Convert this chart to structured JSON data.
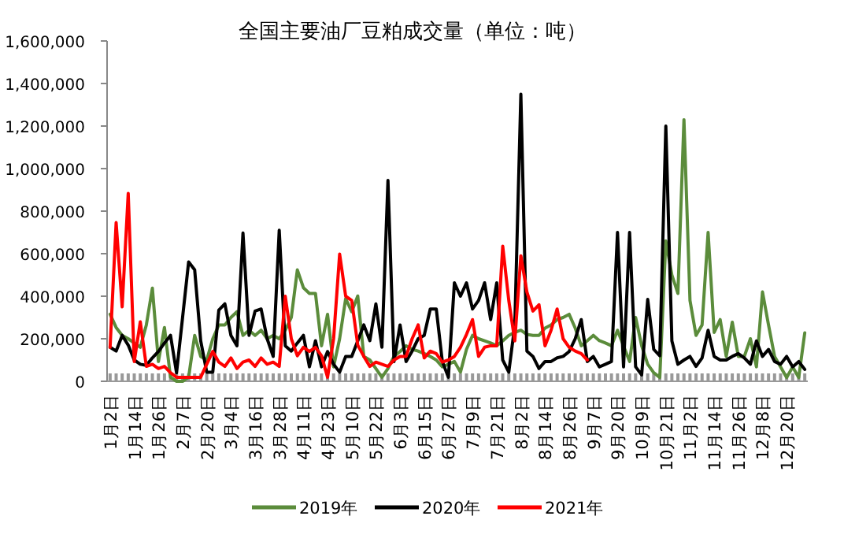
{
  "chart_data": {
    "type": "line",
    "title": "全国主要油厂豆粕成交量（单位：吨）",
    "categories": [
      "1月2日",
      null,
      null,
      null,
      "1月14日",
      null,
      null,
      null,
      "1月26日",
      null,
      null,
      null,
      "2月7日",
      null,
      null,
      null,
      "2月20日",
      null,
      null,
      null,
      "3月4日",
      null,
      null,
      null,
      "3月16日",
      null,
      null,
      null,
      "3月28日",
      null,
      null,
      null,
      "4月11日",
      null,
      null,
      null,
      "4月23日",
      null,
      null,
      null,
      "5月10日",
      null,
      null,
      null,
      "5月22日",
      null,
      null,
      null,
      "6月3日",
      null,
      null,
      null,
      "6月15日",
      null,
      null,
      null,
      "6月27日",
      null,
      null,
      null,
      "7月9日",
      null,
      null,
      null,
      "7月21日",
      null,
      null,
      null,
      "8月2日",
      null,
      null,
      null,
      "8月14日",
      null,
      null,
      null,
      "8月26日",
      null,
      null,
      null,
      "9月7日",
      null,
      null,
      null,
      "9月20日",
      null,
      null,
      null,
      "10月9日",
      null,
      null,
      null,
      "10月21日",
      null,
      null,
      null,
      "11月2日",
      null,
      null,
      null,
      "11月14日",
      null,
      null,
      null,
      "11月26日",
      null,
      null,
      null,
      "12月8日",
      null,
      null,
      null,
      "12月20日",
      null,
      null,
      null
    ],
    "series": [
      {
        "name": "2019年",
        "color": "#5b8c3b",
        "values": [
          315000,
          253000,
          216000,
          200000,
          180000,
          160000,
          265000,
          438000,
          93000,
          253000,
          19000,
          0,
          0,
          19000,
          216000,
          117000,
          100000,
          200000,
          265000,
          265000,
          300000,
          327000,
          216000,
          240000,
          216000,
          240000,
          200000,
          216000,
          200000,
          240000,
          300000,
          524000,
          440000,
          413000,
          413000,
          167000,
          315000,
          68000,
          200000,
          389000,
          327000,
          401000,
          117000,
          100000,
          60000,
          19000,
          60000,
          117000,
          140000,
          167000,
          150000,
          142000,
          130000,
          117000,
          100000,
          68000,
          80000,
          93000,
          43000,
          150000,
          216000,
          200000,
          190000,
          180000,
          167000,
          190000,
          216000,
          230000,
          240000,
          220000,
          216000,
          216000,
          250000,
          265000,
          290000,
          300000,
          315000,
          250000,
          167000,
          191000,
          216000,
          191000,
          180000,
          167000,
          240000,
          167000,
          93000,
          300000,
          167000,
          80000,
          40000,
          18000,
          660000,
          500000,
          413000,
          1230000,
          380000,
          216000,
          265000,
          700000,
          230000,
          290000,
          117000,
          278000,
          117000,
          117000,
          200000,
          68000,
          420000,
          265000,
          117000,
          68000,
          18000,
          68000,
          18000,
          228000
        ]
      },
      {
        "name": "2020年",
        "color": "#000000",
        "values": [
          160000,
          142000,
          216000,
          170000,
          100000,
          80000,
          75000,
          110000,
          140000,
          180000,
          216000,
          40000,
          300000,
          561000,
          524000,
          190000,
          43000,
          43000,
          335000,
          364000,
          216000,
          167000,
          697000,
          216000,
          330000,
          340000,
          200000,
          117000,
          710000,
          167000,
          142000,
          180000,
          216000,
          68000,
          191000,
          68000,
          140000,
          80000,
          43000,
          117000,
          117000,
          190000,
          265000,
          191000,
          364000,
          160000,
          944000,
          93000,
          265000,
          93000,
          142000,
          200000,
          216000,
          340000,
          340000,
          93000,
          19000,
          463000,
          400000,
          463000,
          340000,
          380000,
          463000,
          290000,
          463000,
          100000,
          43000,
          265000,
          1350000,
          142000,
          117000,
          60000,
          93000,
          93000,
          110000,
          117000,
          140000,
          200000,
          290000,
          93000,
          117000,
          68000,
          80000,
          93000,
          700000,
          68000,
          700000,
          68000,
          30000,
          385000,
          150000,
          120000,
          1200000,
          190000,
          80000,
          100000,
          117000,
          70000,
          110000,
          240000,
          117000,
          100000,
          100000,
          117000,
          130000,
          110000,
          80000,
          190000,
          117000,
          150000,
          93000,
          80000,
          117000,
          68000,
          93000,
          56000
        ]
      },
      {
        "name": "2021年",
        "color": "#ff0000",
        "values": [
          160000,
          746000,
          350000,
          883000,
          93000,
          280000,
          70000,
          80000,
          60000,
          70000,
          40000,
          19000,
          19000,
          19000,
          19000,
          19000,
          80000,
          140000,
          90000,
          70000,
          110000,
          60000,
          90000,
          100000,
          70000,
          110000,
          80000,
          90000,
          70000,
          400000,
          200000,
          120000,
          160000,
          140000,
          160000,
          120000,
          19000,
          200000,
          598000,
          400000,
          380000,
          170000,
          117000,
          70000,
          90000,
          80000,
          70000,
          100000,
          117000,
          117000,
          200000,
          265000,
          110000,
          142000,
          130000,
          90000,
          100000,
          117000,
          160000,
          220000,
          290000,
          117000,
          160000,
          167000,
          167000,
          635000,
          380000,
          190000,
          590000,
          420000,
          330000,
          360000,
          167000,
          240000,
          340000,
          200000,
          160000,
          142000,
          130000,
          100000,
          null,
          null,
          null,
          null,
          null,
          null,
          null,
          null,
          null,
          null,
          null,
          null,
          null,
          null,
          null,
          null,
          null,
          null,
          null,
          null,
          null,
          null,
          null,
          null,
          null,
          null,
          null,
          null,
          null,
          null,
          null,
          null,
          null,
          null,
          null,
          null
        ]
      }
    ],
    "ylim": [
      0,
      1600000
    ],
    "yticks": [
      {
        "value": 0,
        "label": "0"
      },
      {
        "value": 200000,
        "label": "200,000"
      },
      {
        "value": 400000,
        "label": "400,000"
      },
      {
        "value": 600000,
        "label": "600,000"
      },
      {
        "value": 800000,
        "label": "800,000"
      },
      {
        "value": 1000000,
        "label": "1,000,000"
      },
      {
        "value": 1200000,
        "label": "1,200,000"
      },
      {
        "value": 1400000,
        "label": "1,400,000"
      },
      {
        "value": 1600000,
        "label": "1,600,000"
      }
    ],
    "legend": "bottom",
    "marker": "none",
    "line_style": "solid"
  }
}
